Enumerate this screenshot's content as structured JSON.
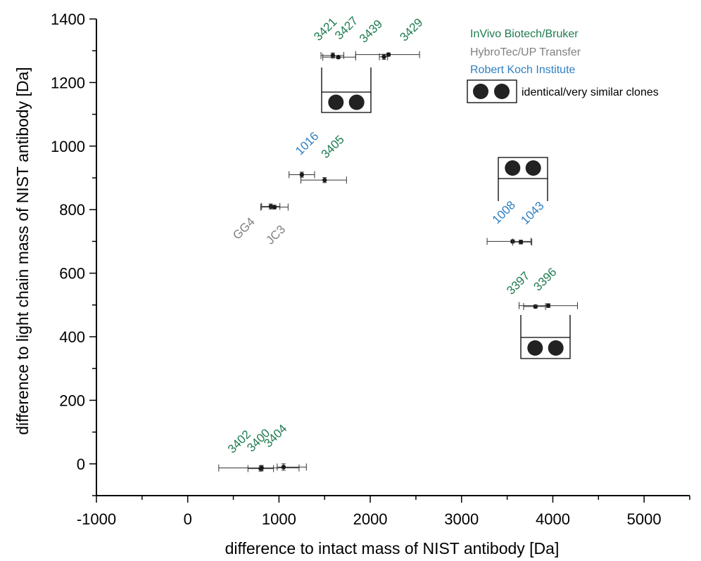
{
  "colors": {
    "invivo": "#1e7b4f",
    "hybrotec": "#808080",
    "rki": "#2e7fc1",
    "point": "#1a1a1a"
  },
  "legend": {
    "items": [
      {
        "label": "InVivo Biotech/Bruker",
        "group": "invivo"
      },
      {
        "label": "HybroTec/UP Transfer",
        "group": "hybrotec"
      },
      {
        "label": "Robert Koch Institute",
        "group": "rki"
      }
    ],
    "clone_label": "identical/very similar clones"
  },
  "chart_data": {
    "type": "scatter",
    "xlabel": "difference to intact mass of NIST antibody [Da]",
    "ylabel": "difference to light chain mass of NIST antibody [Da]",
    "xlim": [
      -1000,
      5500
    ],
    "ylim": [
      -100,
      1400
    ],
    "xticks": [
      -1000,
      0,
      1000,
      2000,
      3000,
      4000,
      5000
    ],
    "yticks": [
      0,
      200,
      400,
      600,
      800,
      1000,
      1200,
      1400
    ],
    "grid": false,
    "legend_position": "top-right",
    "points": [
      {
        "label": "3421",
        "group": "invivo",
        "x": 1590,
        "y": 1285,
        "xerr": [
          1460,
          1710
        ],
        "yerr": 8
      },
      {
        "label": "3427",
        "group": "invivo",
        "x": 1650,
        "y": 1280,
        "xerr": [
          1480,
          1840
        ],
        "yerr": 5
      },
      {
        "label": "3439",
        "group": "invivo",
        "x": 2150,
        "y": 1281,
        "xerr": [
          2100,
          2190
        ],
        "yerr": 8
      },
      {
        "label": "3429",
        "group": "invivo",
        "x": 2200,
        "y": 1288,
        "xerr": [
          1840,
          2540
        ],
        "yerr": 5
      },
      {
        "label": "1016",
        "group": "rki",
        "x": 1250,
        "y": 910,
        "xerr": [
          1110,
          1390
        ],
        "yerr": 8
      },
      {
        "label": "3405",
        "group": "invivo",
        "x": 1500,
        "y": 893,
        "xerr": [
          1240,
          1740
        ],
        "yerr": 8
      },
      {
        "label": "GG4",
        "group": "hybrotec",
        "x": 910,
        "y": 810,
        "xerr": [
          810,
          1010
        ],
        "yerr": 8
      },
      {
        "label": "JC3",
        "group": "hybrotec",
        "x": 950,
        "y": 808,
        "xerr": [
          800,
          1100
        ],
        "yerr": 6
      },
      {
        "label": "1008",
        "group": "rki",
        "x": 3560,
        "y": 700,
        "xerr": [
          3280,
          3760
        ],
        "yerr": 5
      },
      {
        "label": "1043",
        "group": "rki",
        "x": 3650,
        "y": 698,
        "xerr": [
          3560,
          3770
        ],
        "yerr": 6
      },
      {
        "label": "3397",
        "group": "invivo",
        "x": 3810,
        "y": 495,
        "xerr": [
          3680,
          3920
        ],
        "yerr": 5
      },
      {
        "label": "3396",
        "group": "invivo",
        "x": 3950,
        "y": 498,
        "xerr": [
          3630,
          4270
        ],
        "yerr": 6
      },
      {
        "label": "3402",
        "group": "invivo",
        "x": 800,
        "y": -15,
        "xerr": [
          660,
          940
        ],
        "yerr": 8
      },
      {
        "label": "3400",
        "group": "invivo",
        "x": 810,
        "y": -13,
        "xerr": [
          340,
          1220
        ],
        "yerr": 8
      },
      {
        "label": "3404",
        "group": "invivo",
        "x": 1050,
        "y": -10,
        "xerr": [
          980,
          1300
        ],
        "yerr": 10
      }
    ]
  }
}
